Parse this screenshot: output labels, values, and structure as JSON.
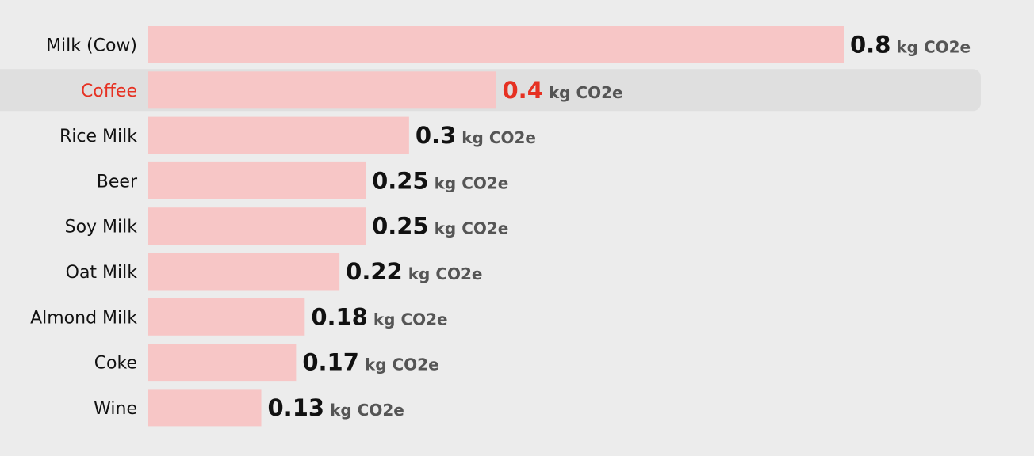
{
  "colors": {
    "background": "#ececec",
    "bar": "#f7c6c6",
    "highlight_row": "#dfdfdf",
    "highlight_text": "#e63122",
    "label_text": "#111111",
    "unit_text": "#555555"
  },
  "chart_data": {
    "type": "bar",
    "orientation": "horizontal",
    "categories": [
      "Milk (Cow)",
      "Coffee",
      "Rice Milk",
      "Beer",
      "Soy Milk",
      "Oat Milk",
      "Almond Milk",
      "Coke",
      "Wine"
    ],
    "values": [
      0.8,
      0.4,
      0.3,
      0.25,
      0.25,
      0.22,
      0.18,
      0.17,
      0.13
    ],
    "value_labels": [
      "0.8",
      "0.4",
      "0.3",
      "0.25",
      "0.25",
      "0.22",
      "0.18",
      "0.17",
      "0.13"
    ],
    "unit": "kg CO2e",
    "highlighted_category": "Coffee",
    "xlim": [
      0,
      0.8
    ],
    "grid": false,
    "legend": "none"
  }
}
